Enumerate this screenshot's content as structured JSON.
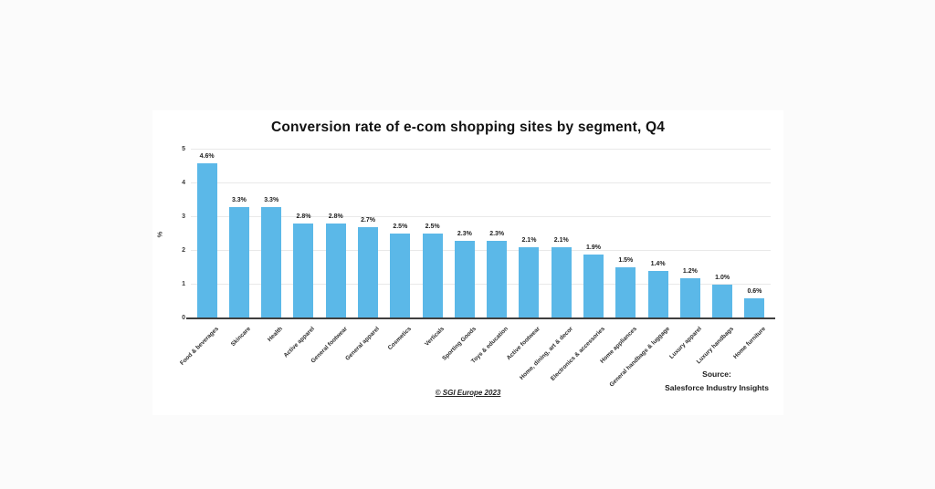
{
  "footer": {
    "copyright": "© SGI Europe 2023",
    "source_label": "Source:",
    "source_name": "Salesforce Industry Insights"
  },
  "chart_data": {
    "type": "bar",
    "title": "Conversion rate of e-com shopping sites by segment, Q4",
    "xlabel": "",
    "ylabel": "%",
    "ylim": [
      0,
      5
    ],
    "yticks": [
      0,
      1,
      2,
      3,
      4,
      5
    ],
    "grid": true,
    "legend": "none",
    "bar_color": "#5BB8E8",
    "categories": [
      "Food & beverages",
      "Skincare",
      "Health",
      "Active apparel",
      "General footwear",
      "General apparel",
      "Cosmetics",
      "Verticals",
      "Sporting Goods",
      "Toys & education",
      "Active footwear",
      "Home, dining, art & decor",
      "Electronics & accessories",
      "Home appliances",
      "General handbags & luggage",
      "Luxury apparel",
      "Luxury handbags",
      "Home furniture"
    ],
    "values": [
      4.6,
      3.3,
      3.3,
      2.8,
      2.8,
      2.7,
      2.5,
      2.5,
      2.3,
      2.3,
      2.1,
      2.1,
      1.9,
      1.5,
      1.4,
      1.2,
      1.0,
      0.6
    ],
    "value_labels": [
      "4.6%",
      "3.3%",
      "3.3%",
      "2.8%",
      "2.8%",
      "2.7%",
      "2.5%",
      "2.5%",
      "2.3%",
      "2.3%",
      "2.1%",
      "2.1%",
      "1.9%",
      "1.5%",
      "1.4%",
      "1.2%",
      "1.0%",
      "0.6%"
    ]
  }
}
